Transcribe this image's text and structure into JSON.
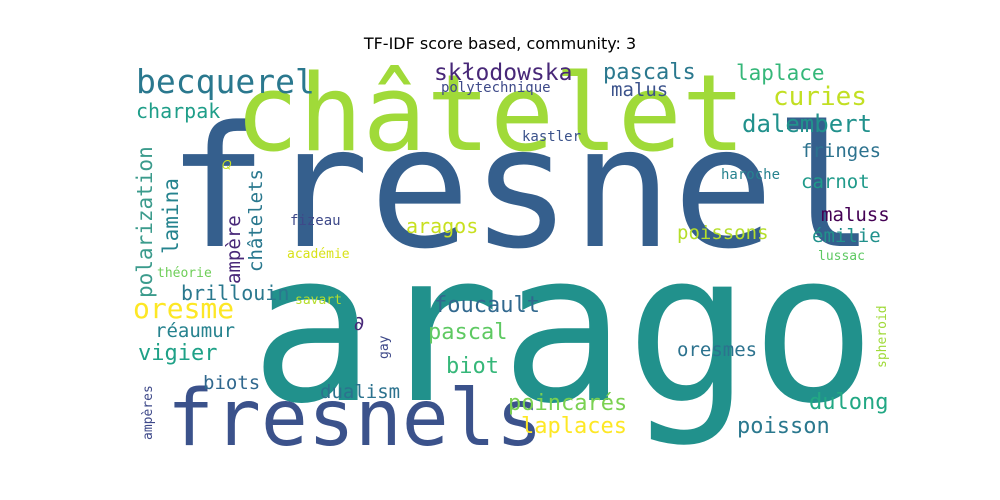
{
  "title": "TF-IDF score based, community: 3",
  "words": [
    {
      "text": "arago",
      "color": "#21918c"
    },
    {
      "text": "fresnel",
      "color": "#355f8d"
    },
    {
      "text": "châtelet",
      "color": "#a0da39"
    },
    {
      "text": "fresnels",
      "color": "#3b528b"
    },
    {
      "text": "becquerel",
      "color": "#2a788e"
    },
    {
      "text": "skłodowska",
      "color": "#482878"
    },
    {
      "text": "pascals",
      "color": "#2a788e"
    },
    {
      "text": "laplace",
      "color": "#35b779"
    },
    {
      "text": "curies",
      "color": "#c2df23"
    },
    {
      "text": "dalembert",
      "color": "#21918c"
    },
    {
      "text": "polytechnique",
      "color": "#3e4a89"
    },
    {
      "text": "malus",
      "color": "#3b528b"
    },
    {
      "text": "charpak",
      "color": "#1f9e89"
    },
    {
      "text": "kastler",
      "color": "#3b528b"
    },
    {
      "text": "fringes",
      "color": "#2c728e"
    },
    {
      "text": "carnot",
      "color": "#1f9a8a"
    },
    {
      "text": "haroche",
      "color": "#26828e"
    },
    {
      "text": "maluss",
      "color": "#440154"
    },
    {
      "text": "émilie",
      "color": "#21918c"
    },
    {
      "text": "lussac",
      "color": "#5ec962"
    },
    {
      "text": "poissons",
      "color": "#b5de2b"
    },
    {
      "text": "aragos",
      "color": "#c8e020"
    },
    {
      "text": "fizeau",
      "color": "#3e4989"
    },
    {
      "text": "académie",
      "color": "#d8e219"
    },
    {
      "text": "théorie",
      "color": "#6ece58"
    },
    {
      "text": "savart",
      "color": "#b5de2b"
    },
    {
      "text": "brillouin",
      "color": "#2a788e"
    },
    {
      "text": "oresme",
      "color": "#fde725"
    },
    {
      "text": "foucault",
      "color": "#31688e"
    },
    {
      "text": "réaumur",
      "color": "#26828e"
    },
    {
      "text": "pascal",
      "color": "#5ec962"
    },
    {
      "text": "vigier",
      "color": "#1fa187"
    },
    {
      "text": "biot",
      "color": "#35b779"
    },
    {
      "text": "oresmes",
      "color": "#2c728e"
    },
    {
      "text": "biots",
      "color": "#31688e"
    },
    {
      "text": "dualism",
      "color": "#2c728e"
    },
    {
      "text": "poincarés",
      "color": "#7ad151"
    },
    {
      "text": "dulong",
      "color": "#22a884"
    },
    {
      "text": "laplaces",
      "color": "#fde725"
    },
    {
      "text": "poisson",
      "color": "#2a788e"
    },
    {
      "text": "∂",
      "color": "#482878"
    },
    {
      "text": "gay",
      "color": "#3e4989"
    },
    {
      "text": "polarization",
      "color": "#3b9b8c"
    },
    {
      "text": "lamina",
      "color": "#25838e"
    },
    {
      "text": "ampère",
      "color": "#482878"
    },
    {
      "text": "châtelets",
      "color": "#2a788e"
    },
    {
      "text": "ampères",
      "color": "#3e4989"
    },
    {
      "text": "spheroid",
      "color": "#a0da39"
    },
    {
      "text": "𝑄",
      "color": "#c8e020"
    }
  ]
}
